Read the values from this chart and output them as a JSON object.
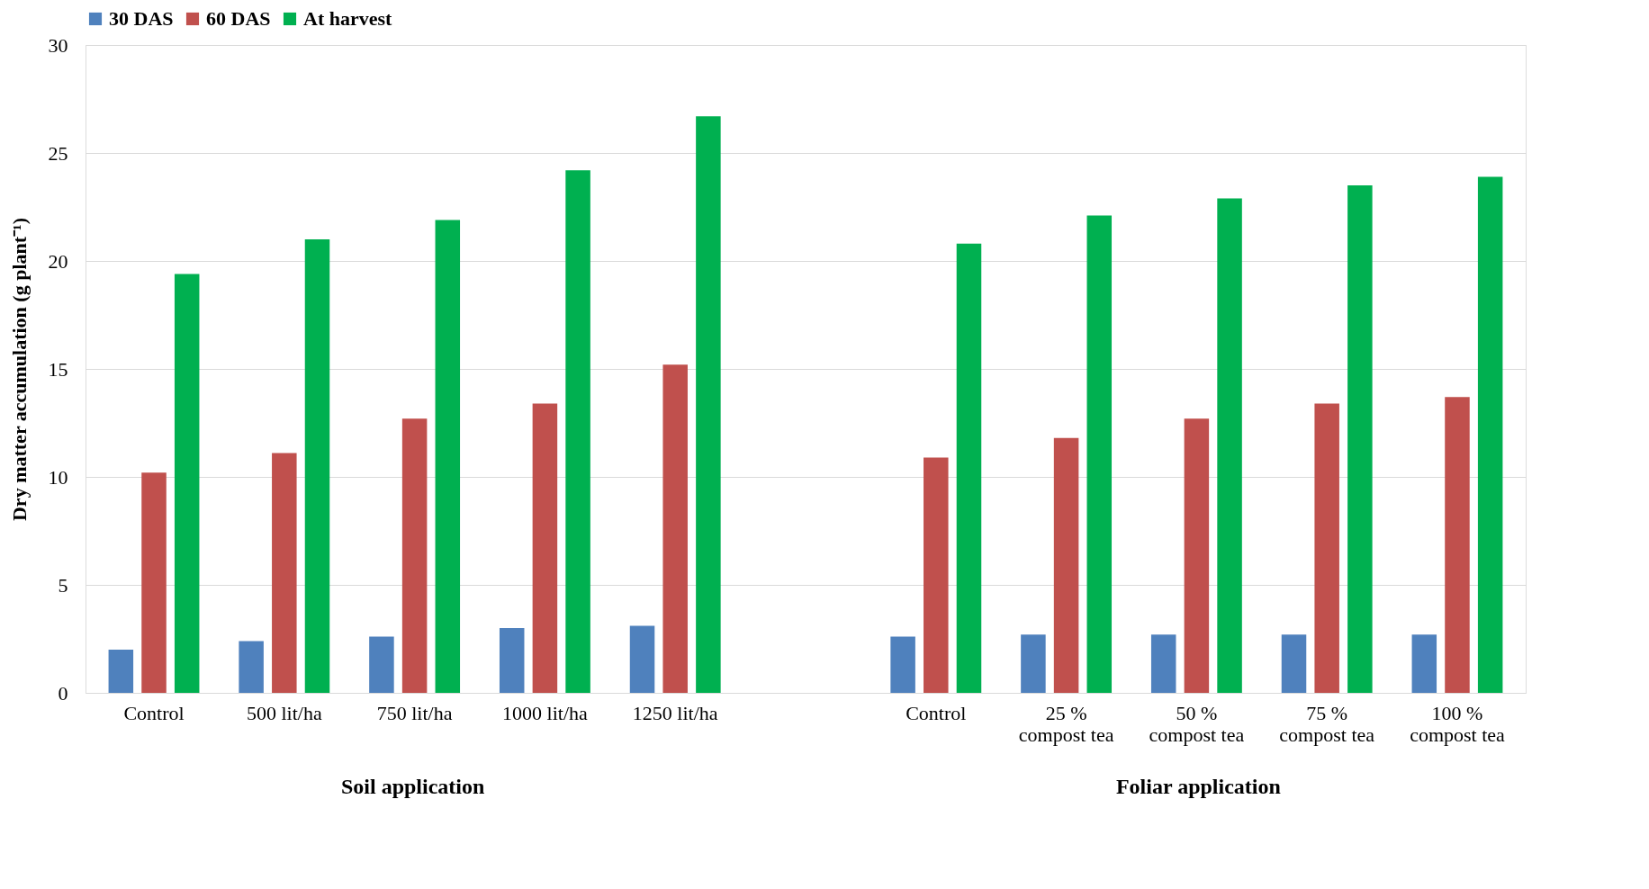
{
  "chart_data": {
    "type": "bar",
    "ylabel": "Dry matter accumulation (g plant⁻¹)",
    "categories": [
      "Control",
      "500 lit/ha",
      "750 lit/ha",
      "1000 lit/ha",
      "1250 lit/ha",
      null,
      "Control",
      "25 %\ncompost tea",
      "50 %\ncompost tea",
      "75 %\ncompost tea",
      "100 %\ncompost tea"
    ],
    "series": [
      {
        "name": "30 DAS",
        "color": "#4f81bd",
        "values": [
          2.0,
          2.4,
          2.6,
          3.0,
          3.1,
          null,
          2.6,
          2.7,
          2.7,
          2.7,
          2.7
        ]
      },
      {
        "name": "60 DAS",
        "color": "#c0504d",
        "values": [
          10.2,
          11.1,
          12.7,
          13.4,
          15.2,
          null,
          10.9,
          11.8,
          12.7,
          13.4,
          13.7
        ]
      },
      {
        "name": "At harvest",
        "color": "#00b050",
        "values": [
          19.4,
          21.0,
          21.9,
          24.2,
          26.7,
          null,
          20.8,
          22.1,
          22.9,
          23.5,
          23.9
        ]
      }
    ],
    "ylim": [
      0,
      30
    ],
    "yticks": [
      0,
      5,
      10,
      15,
      20,
      25,
      30
    ],
    "grid": "y",
    "legend": "top",
    "annotations": [
      "Soil application",
      "Foliar application"
    ]
  }
}
